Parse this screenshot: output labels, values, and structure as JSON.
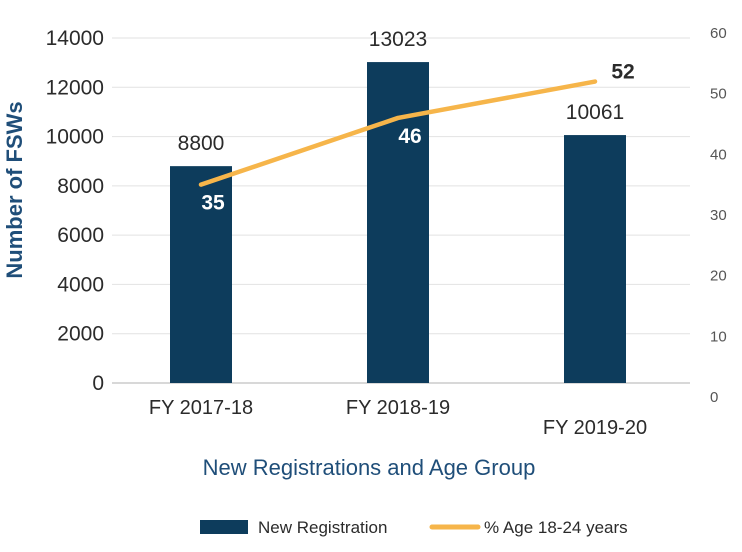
{
  "chart_data": {
    "type": "bar",
    "categories": [
      "FY 2017-18",
      "FY 2018-19",
      "FY 2019-20"
    ],
    "series": [
      {
        "name": "New Registration",
        "type": "bar",
        "axis": "left",
        "color": "#0d3c5c",
        "values": [
          8800,
          13023,
          10061
        ]
      },
      {
        "name": "% Age 18-24 years",
        "type": "line",
        "axis": "right",
        "color": "#f6b54a",
        "values": [
          35,
          46,
          52
        ]
      }
    ],
    "ylabel": "Number of FSWs",
    "xlabel": "New Registrations and Age Group",
    "ylim": [
      0,
      14000
    ],
    "y_ticks": [
      "0",
      "2000",
      "4000",
      "6000",
      "8000",
      "10000",
      "12000",
      "14000"
    ],
    "y2lim": [
      0,
      60
    ],
    "y2_ticks": [
      "0",
      "10",
      "20",
      "30",
      "40",
      "50",
      "60"
    ],
    "grid": true,
    "legend_position": "bottom"
  }
}
